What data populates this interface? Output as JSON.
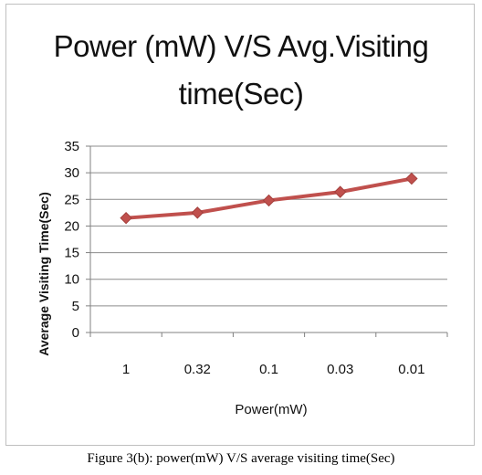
{
  "chart_data": {
    "type": "line",
    "title_lines": [
      "Power (mW) V/S Avg.Visiting",
      "time(Sec)"
    ],
    "xlabel": "Power(mW)",
    "ylabel": "Average Visiting Time(Sec)",
    "categories": [
      "1",
      "0.32",
      "0.1",
      "0.03",
      "0.01"
    ],
    "series": [
      {
        "values": [
          21.5,
          22.5,
          24.8,
          26.4,
          28.9
        ]
      }
    ],
    "ylim": [
      0,
      35
    ],
    "yticks": [
      "0",
      "5",
      "10",
      "15",
      "20",
      "25",
      "30",
      "35"
    ],
    "grid": true,
    "legend": "none",
    "colors": {
      "line": "#c0504d",
      "marker": "#c0504d",
      "grid": "#8c8c8c"
    }
  },
  "caption": "Figure 3(b): power(mW) V/S average visiting time(Sec)"
}
